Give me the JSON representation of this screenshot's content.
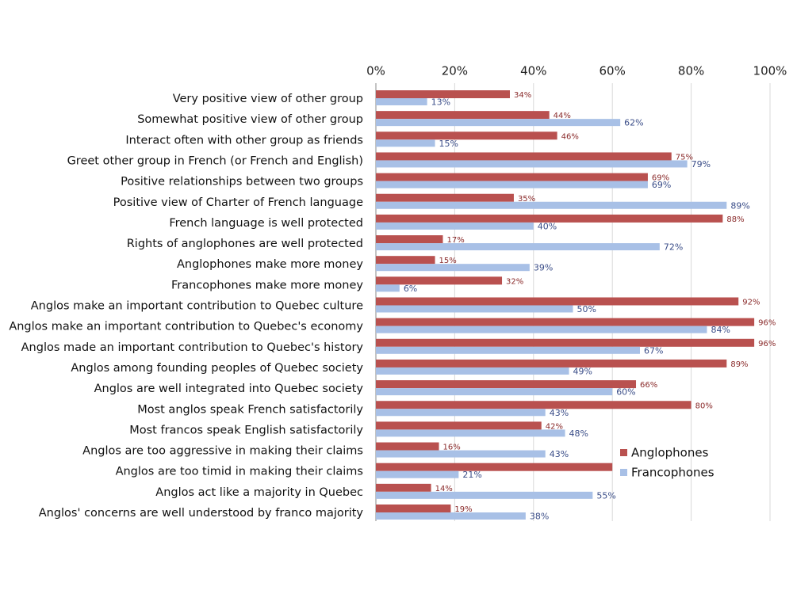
{
  "chart_data": {
    "type": "bar",
    "orientation": "horizontal",
    "categories": [
      "Very positive view of other group",
      "Somewhat positive view of other group",
      "Interact often with other group as friends",
      "Greet other group in French (or French and English)",
      "Positive relationships between two groups",
      "Positive view of Charter of French language",
      "French language is well protected",
      "Rights of anglophones are well protected",
      "Anglophones make more money",
      "Francophones make more money",
      "Anglos make an important contribution to Quebec culture",
      "Anglos make an important contribution to Quebec's economy",
      "Anglos made an important contribution to Quebec's history",
      "Anglos among founding peoples of Quebec society",
      "Anglos are well integrated into Quebec society",
      "Most anglos speak French satisfactorily",
      "Most francos speak English satisfactorily",
      "Anglos are too aggressive in making their claims",
      "Anglos are too timid in making their claims",
      "Anglos act like a majority in Quebec",
      "Anglos' concerns are well understood by franco majority"
    ],
    "series": [
      {
        "name": "Anglophones",
        "color": "#b9514f",
        "label_color": "#8a2b2b",
        "values": [
          34,
          44,
          46,
          75,
          69,
          35,
          88,
          17,
          15,
          32,
          92,
          96,
          96,
          89,
          66,
          80,
          42,
          16,
          60,
          14,
          19
        ],
        "value_labels": [
          "34%",
          "44%",
          "46%",
          "75%",
          "69%",
          "35%",
          "88%",
          "17%",
          "15%",
          "32%",
          "92%",
          "96%",
          "96%",
          "89%",
          "66%",
          "80%",
          "42%",
          "16%",
          null,
          "14%",
          "19%"
        ]
      },
      {
        "name": "Francophones",
        "color": "#a8c0e6",
        "label_color": "#3a4d88",
        "values": [
          13,
          62,
          15,
          79,
          69,
          89,
          40,
          72,
          39,
          6,
          50,
          84,
          67,
          49,
          60,
          43,
          48,
          43,
          21,
          55,
          38
        ],
        "value_labels": [
          "13%",
          "62%",
          "15%",
          "79%",
          "69%",
          "89%",
          "40%",
          "72%",
          "39%",
          "6%",
          "50%",
          "84%",
          "67%",
          "49%",
          "60%",
          "43%",
          "48%",
          "43%",
          "21%",
          "55%",
          "38%"
        ]
      }
    ],
    "xlim": [
      0,
      100
    ],
    "xticks": [
      {
        "value": 0,
        "label": "0%"
      },
      {
        "value": 20,
        "label": "20%"
      },
      {
        "value": 40,
        "label": "40%"
      },
      {
        "value": 60,
        "label": "60%"
      },
      {
        "value": 80,
        "label": "80%"
      },
      {
        "value": 100,
        "label": "100%"
      }
    ],
    "grid": true,
    "legend": "lower right"
  }
}
